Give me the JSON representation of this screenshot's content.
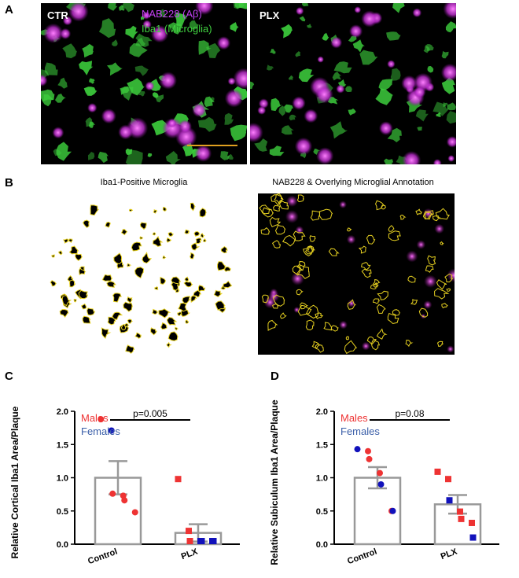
{
  "panels": {
    "A": {
      "letter": "A",
      "left_label": "CTR",
      "right_label": "PLX",
      "legend_marker": "NAB228 (Aβ)",
      "legend_microglia": "Iba1 (Microglia)",
      "colors": {
        "abeta": "#d040e0",
        "microglia": "#3ccc3c",
        "scale_bar": "#e0a020"
      }
    },
    "B": {
      "letter": "B",
      "left_title": "Iba1-Positive Microglia",
      "right_title": "NAB228 & Overlying Microglial Annotation",
      "colors": {
        "outline": "#e6d020"
      }
    },
    "C": {
      "letter": "C"
    },
    "D": {
      "letter": "D"
    }
  },
  "chart_data": [
    {
      "type": "bar",
      "panel": "C",
      "categories": [
        "Control",
        "PLX"
      ],
      "values": [
        1.0,
        0.17
      ],
      "errors": [
        0.25,
        0.13
      ],
      "ylabel": "Relative Cortical Iba1 Area/Plaque",
      "ylim": [
        0,
        2.0
      ],
      "yticks": [
        "0.0",
        "0.5",
        "1.0",
        "1.5",
        "2.0"
      ],
      "legend": {
        "males": "Males",
        "females": "Females",
        "placement": "top-left"
      },
      "significance": "p=0.005",
      "points": {
        "Control": [
          {
            "y": 1.88,
            "sex": "male",
            "shape": "circle"
          },
          {
            "y": 1.71,
            "sex": "female",
            "shape": "circle"
          },
          {
            "y": 0.76,
            "sex": "male",
            "shape": "circle"
          },
          {
            "y": 0.73,
            "sex": "male",
            "shape": "circle"
          },
          {
            "y": 0.66,
            "sex": "male",
            "shape": "circle"
          },
          {
            "y": 0.48,
            "sex": "male",
            "shape": "circle"
          }
        ],
        "PLX": [
          {
            "y": 0.98,
            "sex": "male",
            "shape": "square"
          },
          {
            "y": 0.2,
            "sex": "male",
            "shape": "square"
          },
          {
            "y": 0.01,
            "sex": "male",
            "shape": "square"
          },
          {
            "y": 0.01,
            "sex": "female",
            "shape": "square"
          },
          {
            "y": 0.01,
            "sex": "female",
            "shape": "square"
          },
          {
            "y": 0.01,
            "sex": "female",
            "shape": "square"
          },
          {
            "y": 0.01,
            "sex": "female",
            "shape": "square"
          }
        ]
      },
      "colors": {
        "male": "#ee3333",
        "female": "#1111bb",
        "bar": "#999999",
        "legend_female": "#3b5fa8"
      }
    },
    {
      "type": "bar",
      "panel": "D",
      "categories": [
        "Control",
        "PLX"
      ],
      "values": [
        1.0,
        0.6
      ],
      "errors": [
        0.16,
        0.14
      ],
      "ylabel": "Relative Subiculum Iba1 Area/Plaque",
      "ylim": [
        0,
        2.0
      ],
      "yticks": [
        "0.0",
        "0.5",
        "1.0",
        "1.5",
        "2.0"
      ],
      "legend": {
        "males": "Males",
        "females": "Females",
        "placement": "top-left"
      },
      "significance": "p=0.08",
      "points": {
        "Control": [
          {
            "y": 1.43,
            "sex": "female",
            "shape": "circle"
          },
          {
            "y": 1.4,
            "sex": "male",
            "shape": "circle"
          },
          {
            "y": 1.28,
            "sex": "male",
            "shape": "circle"
          },
          {
            "y": 1.07,
            "sex": "male",
            "shape": "circle"
          },
          {
            "y": 0.9,
            "sex": "female",
            "shape": "circle"
          },
          {
            "y": 0.5,
            "sex": "male",
            "shape": "circle"
          },
          {
            "y": 0.5,
            "sex": "female",
            "shape": "circle"
          }
        ],
        "PLX": [
          {
            "y": 1.09,
            "sex": "male",
            "shape": "square"
          },
          {
            "y": 0.98,
            "sex": "male",
            "shape": "square"
          },
          {
            "y": 0.66,
            "sex": "female",
            "shape": "square"
          },
          {
            "y": 0.49,
            "sex": "male",
            "shape": "square"
          },
          {
            "y": 0.38,
            "sex": "male",
            "shape": "square"
          },
          {
            "y": 0.32,
            "sex": "male",
            "shape": "square"
          },
          {
            "y": 0.1,
            "sex": "female",
            "shape": "square"
          }
        ]
      },
      "colors": {
        "male": "#ee3333",
        "female": "#1111bb",
        "bar": "#999999",
        "legend_female": "#3b5fa8"
      }
    }
  ]
}
